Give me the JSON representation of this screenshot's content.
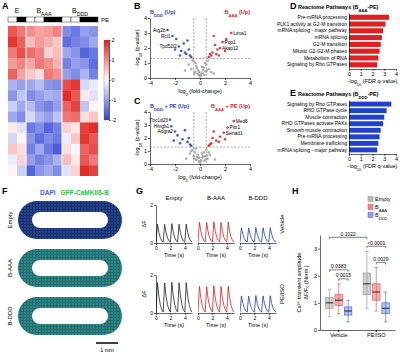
{
  "chart_data": [
    {
      "panel": "A",
      "type": "heatmap",
      "column_groups": [
        {
          "label": "E",
          "span": 2
        },
        {
          "label": "BAAA",
          "span": 4
        },
        {
          "label": "BDDD",
          "span": 4
        }
      ],
      "pe_label": "PE",
      "pe": [
        false,
        true,
        false,
        false,
        true,
        true,
        false,
        false,
        true,
        true
      ],
      "cells": [
        [
          1.5,
          1.2,
          1.0,
          0.8,
          0.9,
          1.1,
          -1.2,
          -1.4,
          -1.0,
          -1.1
        ],
        [
          1.8,
          1.4,
          0.6,
          0.9,
          0.7,
          0.5,
          -1.5,
          -1.3,
          -1.2,
          -0.9
        ],
        [
          1.2,
          1.6,
          1.3,
          1.1,
          0.4,
          0.6,
          -0.9,
          -1.1,
          -1.6,
          -1.4
        ],
        [
          0.9,
          1.1,
          0.8,
          1.2,
          1.0,
          0.7,
          -1.3,
          -1.0,
          -1.1,
          -1.5
        ],
        [
          1.4,
          0.8,
          0.5,
          0.3,
          1.2,
          1.0,
          -1.0,
          -1.2,
          -0.8,
          -1.3
        ],
        [
          -0.8,
          -1.0,
          -0.9,
          -0.7,
          -1.1,
          -1.2,
          1.6,
          1.8,
          -0.4,
          -0.2
        ],
        [
          -1.1,
          -0.6,
          -1.2,
          -1.0,
          -0.8,
          -0.9,
          1.9,
          1.5,
          0.2,
          -0.3
        ],
        [
          -0.5,
          -0.9,
          -0.7,
          -1.1,
          -1.3,
          -1.0,
          1.4,
          1.7,
          -0.6,
          0.1
        ],
        [
          -0.9,
          -1.2,
          -0.4,
          -0.8,
          -1.0,
          -0.6,
          1.2,
          1.3,
          0.3,
          0.5
        ],
        [
          0.2,
          -0.3,
          -1.4,
          -1.2,
          -1.6,
          -1.3,
          0.4,
          0.2,
          1.7,
          1.9
        ],
        [
          -0.4,
          0.1,
          -1.1,
          -1.5,
          -1.2,
          -1.4,
          -0.2,
          0.5,
          1.8,
          1.5
        ],
        [
          0.5,
          0.3,
          -1.3,
          -0.9,
          -1.4,
          -1.7,
          0.3,
          -0.1,
          1.4,
          1.6
        ],
        [
          -0.2,
          0.4,
          -1.0,
          -1.3,
          -1.1,
          -0.8,
          0.6,
          0.2,
          1.5,
          1.2
        ],
        [
          0.1,
          -0.5,
          -1.6,
          -1.1,
          -0.9,
          -1.2,
          -0.3,
          0.4,
          1.9,
          1.7
        ]
      ],
      "colorbar": {
        "range": [
          -2,
          2
        ],
        "ticks": [
          -2,
          -1,
          0,
          1,
          2
        ]
      }
    },
    {
      "panel": "B",
      "type": "scatter",
      "titles": [
        {
          "text": "BDDD (Up)",
          "color": "#1f3fbf"
        },
        {
          "text": "BAAA (Up)",
          "color": "#d62020"
        }
      ],
      "xlabel": "log2 (fold-change)",
      "ylabel": "-log10 (p-value)",
      "xlim": [
        -4,
        4
      ],
      "xticks": [
        -4,
        -2,
        0,
        2,
        4
      ],
      "ylim": [
        0,
        4
      ],
      "yticks": [
        0,
        1,
        2,
        3,
        4
      ],
      "thresholds": {
        "x": [
          -0.5,
          0.5
        ],
        "y": [
          1.3
        ]
      },
      "series": [
        {
          "color": "#a0a0a0",
          "x": [
            -1.2,
            -0.9,
            -0.7,
            -0.5,
            -0.4,
            -0.3,
            -0.2,
            -0.1,
            0,
            0.1,
            0.2,
            0.3,
            0.4,
            0.5,
            0.7,
            0.9,
            1.1,
            -0.6,
            -0.35,
            -0.15,
            0.05,
            0.25,
            0.45,
            0.65,
            -0.25,
            0.15,
            -0.05,
            0.35,
            -0.45,
            0.55
          ],
          "values": [
            0.5,
            0.9,
            0.6,
            1.1,
            0.4,
            0.8,
            0.3,
            0.2,
            0.1,
            0.25,
            0.35,
            0.7,
            1.0,
            0.9,
            0.6,
            0.4,
            0.3,
            1.2,
            1.0,
            0.5,
            0.15,
            0.55,
            0.45,
            1.15,
            0.65,
            0.75,
            0.4,
            0.2,
            0.3,
            0.5
          ]
        },
        {
          "color": "#1f3fbf",
          "x": [
            -2.6,
            -2.2,
            -1.9,
            -1.7,
            -1.5,
            -1.3,
            -1.1,
            -0.9,
            -0.8,
            -0.7,
            -1.6,
            -1.0,
            -2.0,
            -1.2
          ],
          "values": [
            3.2,
            2.8,
            2.6,
            2.1,
            1.8,
            2.3,
            1.6,
            1.9,
            1.5,
            1.4,
            1.5,
            2.5,
            1.9,
            1.7
          ]
        },
        {
          "color": "#d62020",
          "x": [
            2.5,
            2.1,
            1.8,
            1.6,
            1.4,
            1.2,
            1.0,
            0.9,
            0.8,
            0.7,
            1.5,
            1.1,
            2.0,
            1.3
          ],
          "values": [
            3.0,
            2.6,
            2.4,
            2.0,
            1.9,
            2.2,
            1.7,
            1.5,
            1.6,
            1.4,
            1.5,
            2.8,
            1.8,
            1.6
          ]
        }
      ],
      "annotations": [
        {
          "text": "Atg2b",
          "x": -2.6,
          "y": 3.2
        },
        {
          "text": "Rcl1",
          "x": -2.2,
          "y": 2.8
        },
        {
          "text": "Tpd52l2",
          "x": -1.7,
          "y": 2.1
        },
        {
          "text": "Lima1",
          "x": 2.5,
          "y": 3.0
        },
        {
          "text": "Pop1",
          "x": 1.8,
          "y": 2.4
        },
        {
          "text": "Akap12",
          "x": 1.6,
          "y": 2.0
        }
      ]
    },
    {
      "panel": "C",
      "type": "scatter",
      "titles": [
        {
          "text": "BDDD + PE (Up)",
          "color": "#1f3fbf"
        },
        {
          "text": "BAAA + PE (Up)",
          "color": "#d62020"
        }
      ],
      "xlabel": "log2 (fold-change)",
      "ylabel": "-log10 (p-value)",
      "xlim": [
        -4,
        4
      ],
      "xticks": [
        -4,
        -2,
        0,
        2,
        4
      ],
      "ylim": [
        0,
        4
      ],
      "yticks": [
        0,
        1,
        2,
        3,
        4
      ],
      "thresholds": {
        "x": [
          -0.5,
          0.5
        ],
        "y": [
          1.3
        ]
      },
      "series": [
        {
          "color": "#a0a0a0",
          "x": [
            -1.1,
            -0.8,
            -0.6,
            -0.5,
            -0.4,
            -0.3,
            -0.2,
            -0.1,
            0,
            0.1,
            0.2,
            0.3,
            0.4,
            0.5,
            0.6,
            0.8,
            1.2,
            -0.7,
            -0.35,
            -0.15,
            0.05,
            0.25,
            0.45,
            0.7,
            -0.25,
            0.15,
            -0.05,
            0.35,
            -0.45,
            0.55
          ],
          "values": [
            0.4,
            0.8,
            1.1,
            0.6,
            0.9,
            0.3,
            0.7,
            0.2,
            0.1,
            0.3,
            0.5,
            0.9,
            0.6,
            1.1,
            0.4,
            0.7,
            0.35,
            1.0,
            1.2,
            0.45,
            0.2,
            0.6,
            0.35,
            0.9,
            0.55,
            0.8,
            0.5,
            0.25,
            0.4,
            0.65
          ]
        },
        {
          "color": "#1f3fbf",
          "x": [
            -2.4,
            -2.3,
            -2.0,
            -1.8,
            -1.4,
            -1.2,
            -1.0,
            -0.8,
            -0.7,
            -1.6,
            -0.9,
            -2.1
          ],
          "values": [
            3.4,
            2.9,
            2.5,
            2.2,
            1.9,
            2.6,
            1.7,
            1.5,
            1.4,
            1.6,
            2.0,
            1.8
          ]
        },
        {
          "color": "#d62020",
          "x": [
            2.7,
            2.2,
            1.9,
            1.6,
            1.3,
            1.1,
            0.9,
            0.8,
            0.7,
            1.5,
            1.0,
            2.0
          ],
          "values": [
            3.3,
            2.8,
            2.4,
            2.1,
            1.8,
            2.5,
            1.6,
            1.5,
            1.4,
            1.7,
            2.0,
            1.9
          ]
        }
      ],
      "annotations": [
        {
          "text": "Tbc1d23",
          "x": -2.4,
          "y": 3.4
        },
        {
          "text": "Hmgb1",
          "x": -2.3,
          "y": 2.9
        },
        {
          "text": "Adgra2",
          "x": -2.0,
          "y": 2.5
        },
        {
          "text": "Med6",
          "x": 2.7,
          "y": 3.3
        },
        {
          "text": "Pitx1",
          "x": 2.2,
          "y": 2.8
        },
        {
          "text": "Sertad1",
          "x": 1.9,
          "y": 2.4
        }
      ]
    },
    {
      "panel": "D",
      "type": "bar",
      "orientation": "horizontal",
      "title": "Reactome Pathways (BAAA-PE)",
      "categories": [
        "Pre-mRNA processing",
        "PLK1 activity at G2-M transition",
        "mRNA splicing - major pathway",
        "mRNA splicing",
        "G2-M transition",
        "Mitotic G2-G2-M phases",
        "Metabolism of RNA",
        "Signaling by Rho GTPases"
      ],
      "values": [
        3.4,
        3.1,
        2.9,
        2.8,
        2.7,
        2.6,
        2.5,
        2.4
      ],
      "color": "#e02020",
      "xlabel": "-log10 (FDR q-value)",
      "xlim": [
        0,
        4
      ],
      "xticks": [
        0,
        1,
        2,
        3,
        4
      ]
    },
    {
      "panel": "E",
      "type": "bar",
      "orientation": "horizontal",
      "title": "Reactome Pathways (BDDD-PE)",
      "categories": [
        "Signaling by Rho GTPases",
        "RHO GTPase cycle",
        "Muscle contraction",
        "RHO GTPases activate PAKs",
        "Smooth muscle contraction",
        "Pre-mRNA processing",
        "Membrane trafficking",
        "mRNA splicing - major pathway"
      ],
      "values": [
        3.6,
        3.2,
        3.0,
        2.9,
        2.7,
        2.6,
        2.5,
        2.4
      ],
      "color": "#2040d0",
      "xlabel": "-log10 (FDR q-value)",
      "xlim": [
        0,
        4
      ],
      "xticks": [
        0,
        1,
        2,
        3,
        4
      ]
    },
    {
      "panel": "F",
      "type": "image",
      "stains": [
        {
          "text": "DAPI",
          "color": "#3f5cff"
        },
        {
          "text": "GFP-CaMKIIδ-B",
          "color": "#2fbf3f"
        }
      ],
      "rows": [
        "Empty",
        "B-AAA",
        "B-DDD"
      ],
      "scale_bar": "1 mm"
    },
    {
      "panel": "G",
      "type": "line",
      "columns": [
        "Empty",
        "B-AAA",
        "B-DDD"
      ],
      "rows": [
        "Vehicle",
        "PE/ISO"
      ],
      "xlabel": "Time (s)",
      "ylabel": "ΔF",
      "x": [
        0,
        0.2,
        0.4,
        0.6,
        0.8,
        1,
        1.2,
        1.4,
        1.6,
        1.8,
        2,
        2.2,
        2.4,
        2.6,
        2.8,
        3,
        3.2,
        3.4,
        3.6,
        3.8,
        4,
        4.2,
        4.4,
        4.6,
        4.8,
        5
      ],
      "xlim": [
        0,
        5
      ],
      "xticks": [
        0,
        2,
        4
      ],
      "ylim": [
        0,
        2
      ],
      "yticks": [
        0,
        2
      ],
      "series": [
        {
          "color": "#222222",
          "values": [
            0.05,
            1.0,
            0.55,
            0.28,
            0.12,
            0.05,
            0.98,
            0.54,
            0.27,
            0.12,
            0.05,
            1.02,
            0.56,
            0.28,
            0.12,
            0.05,
            0.99,
            0.55,
            0.27,
            0.11,
            0.05,
            1.0,
            0.55,
            0.28,
            0.12,
            0.05
          ]
        },
        {
          "color": "#d62020",
          "values": [
            0.05,
            1.1,
            0.6,
            0.3,
            0.13,
            0.05,
            1.08,
            0.6,
            0.3,
            0.13,
            0.05,
            1.12,
            0.61,
            0.31,
            0.13,
            0.05,
            1.09,
            0.6,
            0.3,
            0.12,
            0.05,
            1.1,
            0.6,
            0.3,
            0.13,
            0.05
          ]
        },
        {
          "color": "#1f3fbf",
          "values": [
            0.05,
            0.8,
            0.45,
            0.23,
            0.1,
            0.05,
            0.79,
            0.44,
            0.22,
            0.1,
            0.05,
            0.82,
            0.46,
            0.23,
            0.1,
            0.05,
            0.8,
            0.45,
            0.22,
            0.1,
            0.05,
            0.81,
            0.45,
            0.23,
            0.1,
            0.05
          ]
        },
        {
          "color": "#222222",
          "values": [
            0.05,
            1.6,
            0.88,
            0.44,
            0.18,
            0.05,
            1.58,
            0.87,
            0.43,
            0.18,
            0.05,
            1.62,
            0.89,
            0.44,
            0.18,
            0.05,
            1.59,
            0.88,
            0.44,
            0.17,
            0.05,
            1.6,
            0.88,
            0.44,
            0.18,
            0.05
          ]
        },
        {
          "color": "#d62020",
          "values": [
            0.05,
            1.4,
            0.77,
            0.39,
            0.16,
            0.05,
            1.38,
            0.76,
            0.38,
            0.16,
            0.05,
            1.42,
            0.78,
            0.39,
            0.16,
            0.05,
            1.39,
            0.77,
            0.38,
            0.15,
            0.05,
            1.4,
            0.77,
            0.39,
            0.16,
            0.05
          ]
        },
        {
          "color": "#1f3fbf",
          "values": [
            0.05,
            0.9,
            0.5,
            0.25,
            0.11,
            0.05,
            0.89,
            0.49,
            0.25,
            0.11,
            0.05,
            0.92,
            0.51,
            0.25,
            0.11,
            0.05,
            0.9,
            0.5,
            0.25,
            0.1,
            0.05,
            0.91,
            0.5,
            0.25,
            0.11,
            0.05
          ]
        }
      ]
    },
    {
      "panel": "H",
      "type": "box",
      "categories": [
        "Vehicle",
        "PE/ISO"
      ],
      "ylabel": [
        "Ca²⁺ transient amplitude",
        "ΔF/F₀ (Norm.)"
      ],
      "ylim": [
        0,
        3.5
      ],
      "yticks": [
        0,
        1,
        2,
        3
      ],
      "legend": "top-right",
      "series": [
        {
          "name": "Empty",
          "color": "#8c8c8c",
          "boxes": [
            {
              "min": 0.5,
              "q1": 0.8,
              "median": 1.0,
              "q3": 1.2,
              "max": 1.5
            },
            {
              "min": 0.8,
              "q1": 1.3,
              "median": 1.7,
              "q3": 2.1,
              "max": 2.9
            }
          ]
        },
        {
          "name": "BAAA",
          "color": "#e04040",
          "boxes": [
            {
              "min": 0.6,
              "q1": 0.9,
              "median": 1.1,
              "q3": 1.3,
              "max": 1.7
            },
            {
              "min": 0.7,
              "q1": 1.1,
              "median": 1.4,
              "q3": 1.7,
              "max": 2.3
            }
          ]
        },
        {
          "name": "BDDD",
          "color": "#4060e0",
          "boxes": [
            {
              "min": 0.3,
              "q1": 0.55,
              "median": 0.7,
              "q3": 0.85,
              "max": 1.1
            },
            {
              "min": 0.3,
              "q1": 0.6,
              "median": 0.8,
              "q3": 1.0,
              "max": 1.4
            }
          ]
        }
      ],
      "comparisons": [
        {
          "text": "0.0015",
          "a": [
            0,
            1
          ],
          "b": [
            0,
            2
          ]
        },
        {
          "text": "0.0383",
          "a": [
            0,
            0
          ],
          "b": [
            0,
            2
          ]
        },
        {
          "text": "0.0029",
          "a": [
            1,
            1
          ],
          "b": [
            1,
            2
          ]
        },
        {
          "text": "<0.0001",
          "a": [
            1,
            0
          ],
          "b": [
            1,
            2
          ]
        },
        {
          "text": "0.1022",
          "a": [
            0,
            0
          ],
          "b": [
            1,
            0
          ]
        }
      ]
    }
  ]
}
